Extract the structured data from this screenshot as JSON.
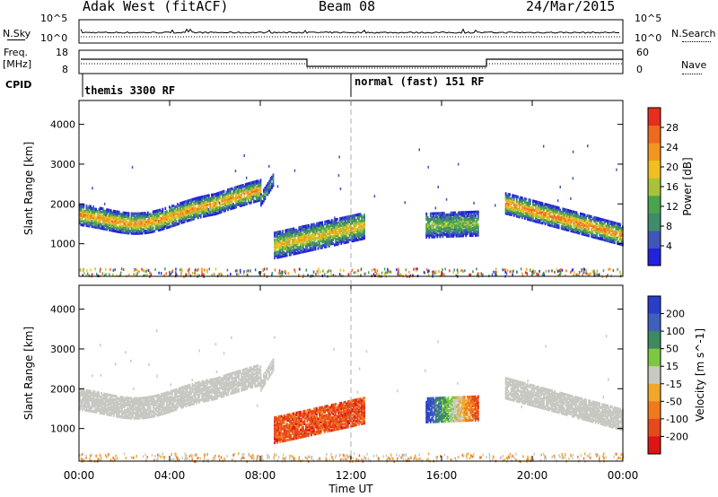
{
  "header": {
    "station": "Adak West (fitACF)",
    "beam": "Beam 08",
    "date": "24/Mar/2015"
  },
  "left_labels": {
    "nsky": "N.Sky",
    "freq_line1": "Freq.",
    "freq_line2": "[MHz]",
    "cpid": "CPID"
  },
  "right_labels": {
    "nsearch": "N.Search",
    "nave": "Nave"
  },
  "noise_panel": {
    "left_ticks": [
      "10^5",
      "10^0"
    ],
    "right_ticks": [
      "10^5",
      "10^0"
    ]
  },
  "freq_panel": {
    "left_ticks": [
      "18",
      "8"
    ],
    "right_ticks": [
      "60",
      "0"
    ]
  },
  "cpid_panel": {
    "entries": [
      "themis 3300 RF",
      "normal (fast) 151 RF"
    ]
  },
  "colors": {
    "power_scale": [
      "#2222dd",
      "#3d56b8",
      "#3f8c6a",
      "#4aa44e",
      "#a8c23a",
      "#f0c020",
      "#f39520",
      "#ee6a20",
      "#e52e1c"
    ],
    "velocity_scale": [
      "#2a3dc8",
      "#3d5fbe",
      "#3d8a60",
      "#7cc843",
      "#c9c9c3",
      "#f0a828",
      "#ef7a1e",
      "#e64a1c",
      "#dd1515"
    ],
    "ground_scatter": "#c8c8c2"
  },
  "chart_data": [
    {
      "type": "heatmap",
      "title": "Power",
      "xlabel": "Time UT",
      "ylabel": "Slant Range [km]",
      "x_ticks": [
        "00:00",
        "04:00",
        "08:00",
        "12:00",
        "16:00",
        "20:00",
        "00:00"
      ],
      "xlim": [
        0,
        24
      ],
      "ylim": [
        180,
        4600
      ],
      "y_ticks": [
        1000,
        2000,
        3000,
        4000
      ],
      "colorbar": {
        "label": "Power [dB]",
        "ticks": [
          4,
          8,
          12,
          16,
          20,
          24,
          28
        ],
        "range": [
          0,
          32
        ]
      },
      "regions": [
        {
          "t_start": 0.0,
          "t_end": 8.0,
          "range_center_start": 1850,
          "range_center_end": 2150,
          "range_dip": 1500,
          "dip_time": 2.5,
          "width_km": 500,
          "peak_power_db": 26
        },
        {
          "t_start": 8.0,
          "t_end": 8.6,
          "range_center_start": 2150,
          "range_center_end": 2700,
          "width_km": 300,
          "peak_power_db": 10
        },
        {
          "t_start": 8.6,
          "t_end": 12.6,
          "range_center_start": 1000,
          "range_center_end": 1500,
          "width_km": 650,
          "peak_power_db": 22
        },
        {
          "t_start": 15.3,
          "t_end": 17.6,
          "range_center_start": 1500,
          "range_center_end": 1550,
          "width_km": 600,
          "peak_power_db": 16
        },
        {
          "t_start": 18.8,
          "t_end": 24.0,
          "range_center_start": 2050,
          "range_center_end": 1250,
          "width_km": 500,
          "peak_power_db": 28
        }
      ]
    },
    {
      "type": "heatmap",
      "title": "Velocity",
      "xlabel": "Time UT",
      "ylabel": "Slant Range [km]",
      "x_ticks": [
        "00:00",
        "04:00",
        "08:00",
        "12:00",
        "16:00",
        "20:00",
        "00:00"
      ],
      "xlim": [
        0,
        24
      ],
      "ylim": [
        180,
        4600
      ],
      "y_ticks": [
        1000,
        2000,
        3000,
        4000
      ],
      "colorbar": {
        "label": "Velocity [m s^-1]",
        "ticks": [
          200,
          100,
          50,
          15,
          -15,
          -50,
          -100,
          -200
        ]
      },
      "regions": [
        {
          "t_start": 0.0,
          "t_end": 8.4,
          "velocity": "ground scatter"
        },
        {
          "t_start": 8.6,
          "t_end": 12.6,
          "velocity_ms": -120
        },
        {
          "t_start": 15.3,
          "t_end": 17.6,
          "velocity_ms_start": 200,
          "velocity_ms_end": -150
        },
        {
          "t_start": 18.8,
          "t_end": 24.0,
          "velocity": "ground scatter"
        }
      ]
    }
  ]
}
